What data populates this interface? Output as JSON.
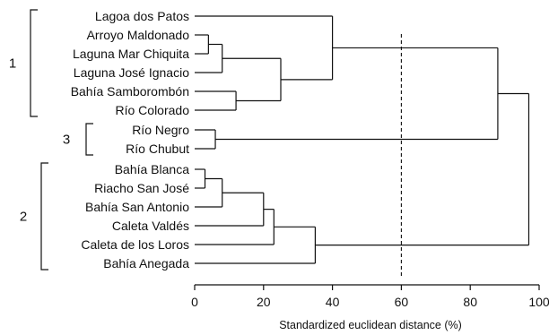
{
  "chart_data": {
    "type": "dendrogram",
    "xlabel": "Standardized euclidean distance (%)",
    "xlim": [
      0,
      100
    ],
    "xticks": [
      0,
      20,
      40,
      60,
      80,
      100
    ],
    "cut_line": 60,
    "leaves": [
      "Lagoa dos Patos",
      "Arroyo Maldonado",
      "Laguna Mar Chiquita",
      "Laguna José Ignacio",
      "Bahía Samborombón",
      "Río Colorado",
      "Río Negro",
      "Río Chubut",
      "Bahía Blanca",
      "Riacho San José",
      "Bahía San Antonio",
      "Caleta Valdés",
      "Caleta de los Loros",
      "Bahía Anegada"
    ],
    "merges": [
      {
        "id": "m1",
        "a": "L1",
        "b": "L2",
        "height": 4
      },
      {
        "id": "m2",
        "a": "m1",
        "b": "L3",
        "height": 8
      },
      {
        "id": "m3",
        "a": "L4",
        "b": "L5",
        "height": 12
      },
      {
        "id": "m4",
        "a": "m2",
        "b": "m3",
        "height": 25
      },
      {
        "id": "m5",
        "a": "L0",
        "b": "m4",
        "height": 40
      },
      {
        "id": "m6",
        "a": "L6",
        "b": "L7",
        "height": 6
      },
      {
        "id": "m7",
        "a": "m5",
        "b": "m6",
        "height": 88
      },
      {
        "id": "m8",
        "a": "L8",
        "b": "L9",
        "height": 3
      },
      {
        "id": "m9",
        "a": "m8",
        "b": "L10",
        "height": 8
      },
      {
        "id": "m10",
        "a": "m9",
        "b": "L11",
        "height": 20
      },
      {
        "id": "m11",
        "a": "m10",
        "b": "L12",
        "height": 23
      },
      {
        "id": "m12",
        "a": "m11",
        "b": "L13",
        "height": 35
      },
      {
        "id": "m13",
        "a": "m7",
        "b": "m12",
        "height": 97
      }
    ],
    "groups": [
      {
        "label": "1",
        "first": 0,
        "last": 5
      },
      {
        "label": "3",
        "first": 6,
        "last": 7
      },
      {
        "label": "2",
        "first": 8,
        "last": 13
      }
    ]
  }
}
